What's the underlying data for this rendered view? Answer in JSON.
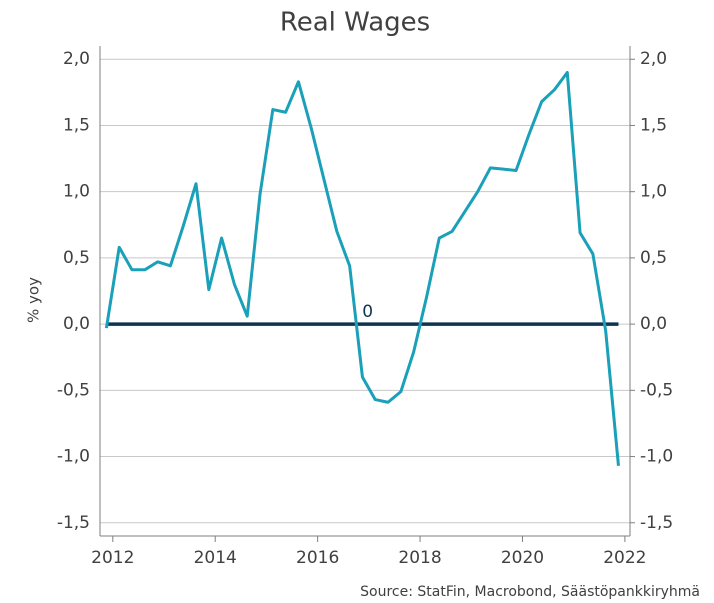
{
  "chart_data": {
    "type": "line",
    "title": "Real Wages",
    "y_label": "% yoy",
    "source": "Source: StatFin, Macrobond, Säästöpankkiryhmä",
    "x": [
      2011.875,
      2012.125,
      2012.375,
      2012.625,
      2012.875,
      2013.125,
      2013.375,
      2013.625,
      2013.875,
      2014.125,
      2014.375,
      2014.625,
      2014.875,
      2015.125,
      2015.375,
      2015.625,
      2015.875,
      2016.125,
      2016.375,
      2016.625,
      2016.875,
      2017.125,
      2017.375,
      2017.625,
      2017.875,
      2018.125,
      2018.375,
      2018.625,
      2018.875,
      2019.125,
      2019.375,
      2019.625,
      2019.875,
      2020.125,
      2020.375,
      2020.625,
      2020.875,
      2021.125,
      2021.375,
      2021.625,
      2021.875
    ],
    "series": [
      {
        "name": "Real Wages",
        "color": "#1aa0b8",
        "values": [
          -0.03,
          0.58,
          0.41,
          0.41,
          0.47,
          0.44,
          0.74,
          1.06,
          0.26,
          0.65,
          0.3,
          0.06,
          0.98,
          1.62,
          1.6,
          1.83,
          1.48,
          1.09,
          0.7,
          0.44,
          -0.4,
          -0.57,
          -0.59,
          -0.51,
          -0.21,
          0.2,
          0.65,
          0.7,
          0.85,
          1.0,
          1.18,
          1.17,
          1.16,
          1.43,
          1.68,
          1.77,
          1.9,
          0.69,
          0.53,
          -0.05,
          -1.07
        ]
      }
    ],
    "reference_line": {
      "value": 0,
      "label": "0",
      "color": "#0d3552"
    },
    "xlim": [
      2011.75,
      2022.1
    ],
    "xticks": [
      2012,
      2014,
      2016,
      2018,
      2020,
      2022
    ],
    "ylim": [
      -1.6,
      2.1
    ],
    "yticks": [
      {
        "value": -1.5,
        "label": "-1,5"
      },
      {
        "value": -1,
        "label": "-1,0"
      },
      {
        "value": -0.5,
        "label": "-0,5"
      },
      {
        "value": 0,
        "label": "0,0"
      },
      {
        "value": 0.5,
        "label": "0,5"
      },
      {
        "value": 1,
        "label": "1,0"
      },
      {
        "value": 1.5,
        "label": "1,5"
      },
      {
        "value": 2,
        "label": "2,0"
      }
    ],
    "y2lim": [
      -1.6,
      2.1
    ],
    "y2ticks": [
      {
        "value": -1.5,
        "label": "-1,5"
      },
      {
        "value": -1,
        "label": "-1,0"
      },
      {
        "value": -0.5,
        "label": "-0,5"
      },
      {
        "value": 0,
        "label": "0,0"
      },
      {
        "value": 0.5,
        "label": "0,5"
      },
      {
        "value": 1,
        "label": "1,0"
      },
      {
        "value": 1.5,
        "label": "1,5"
      },
      {
        "value": 2,
        "label": "2,0"
      }
    ],
    "grid": true
  }
}
